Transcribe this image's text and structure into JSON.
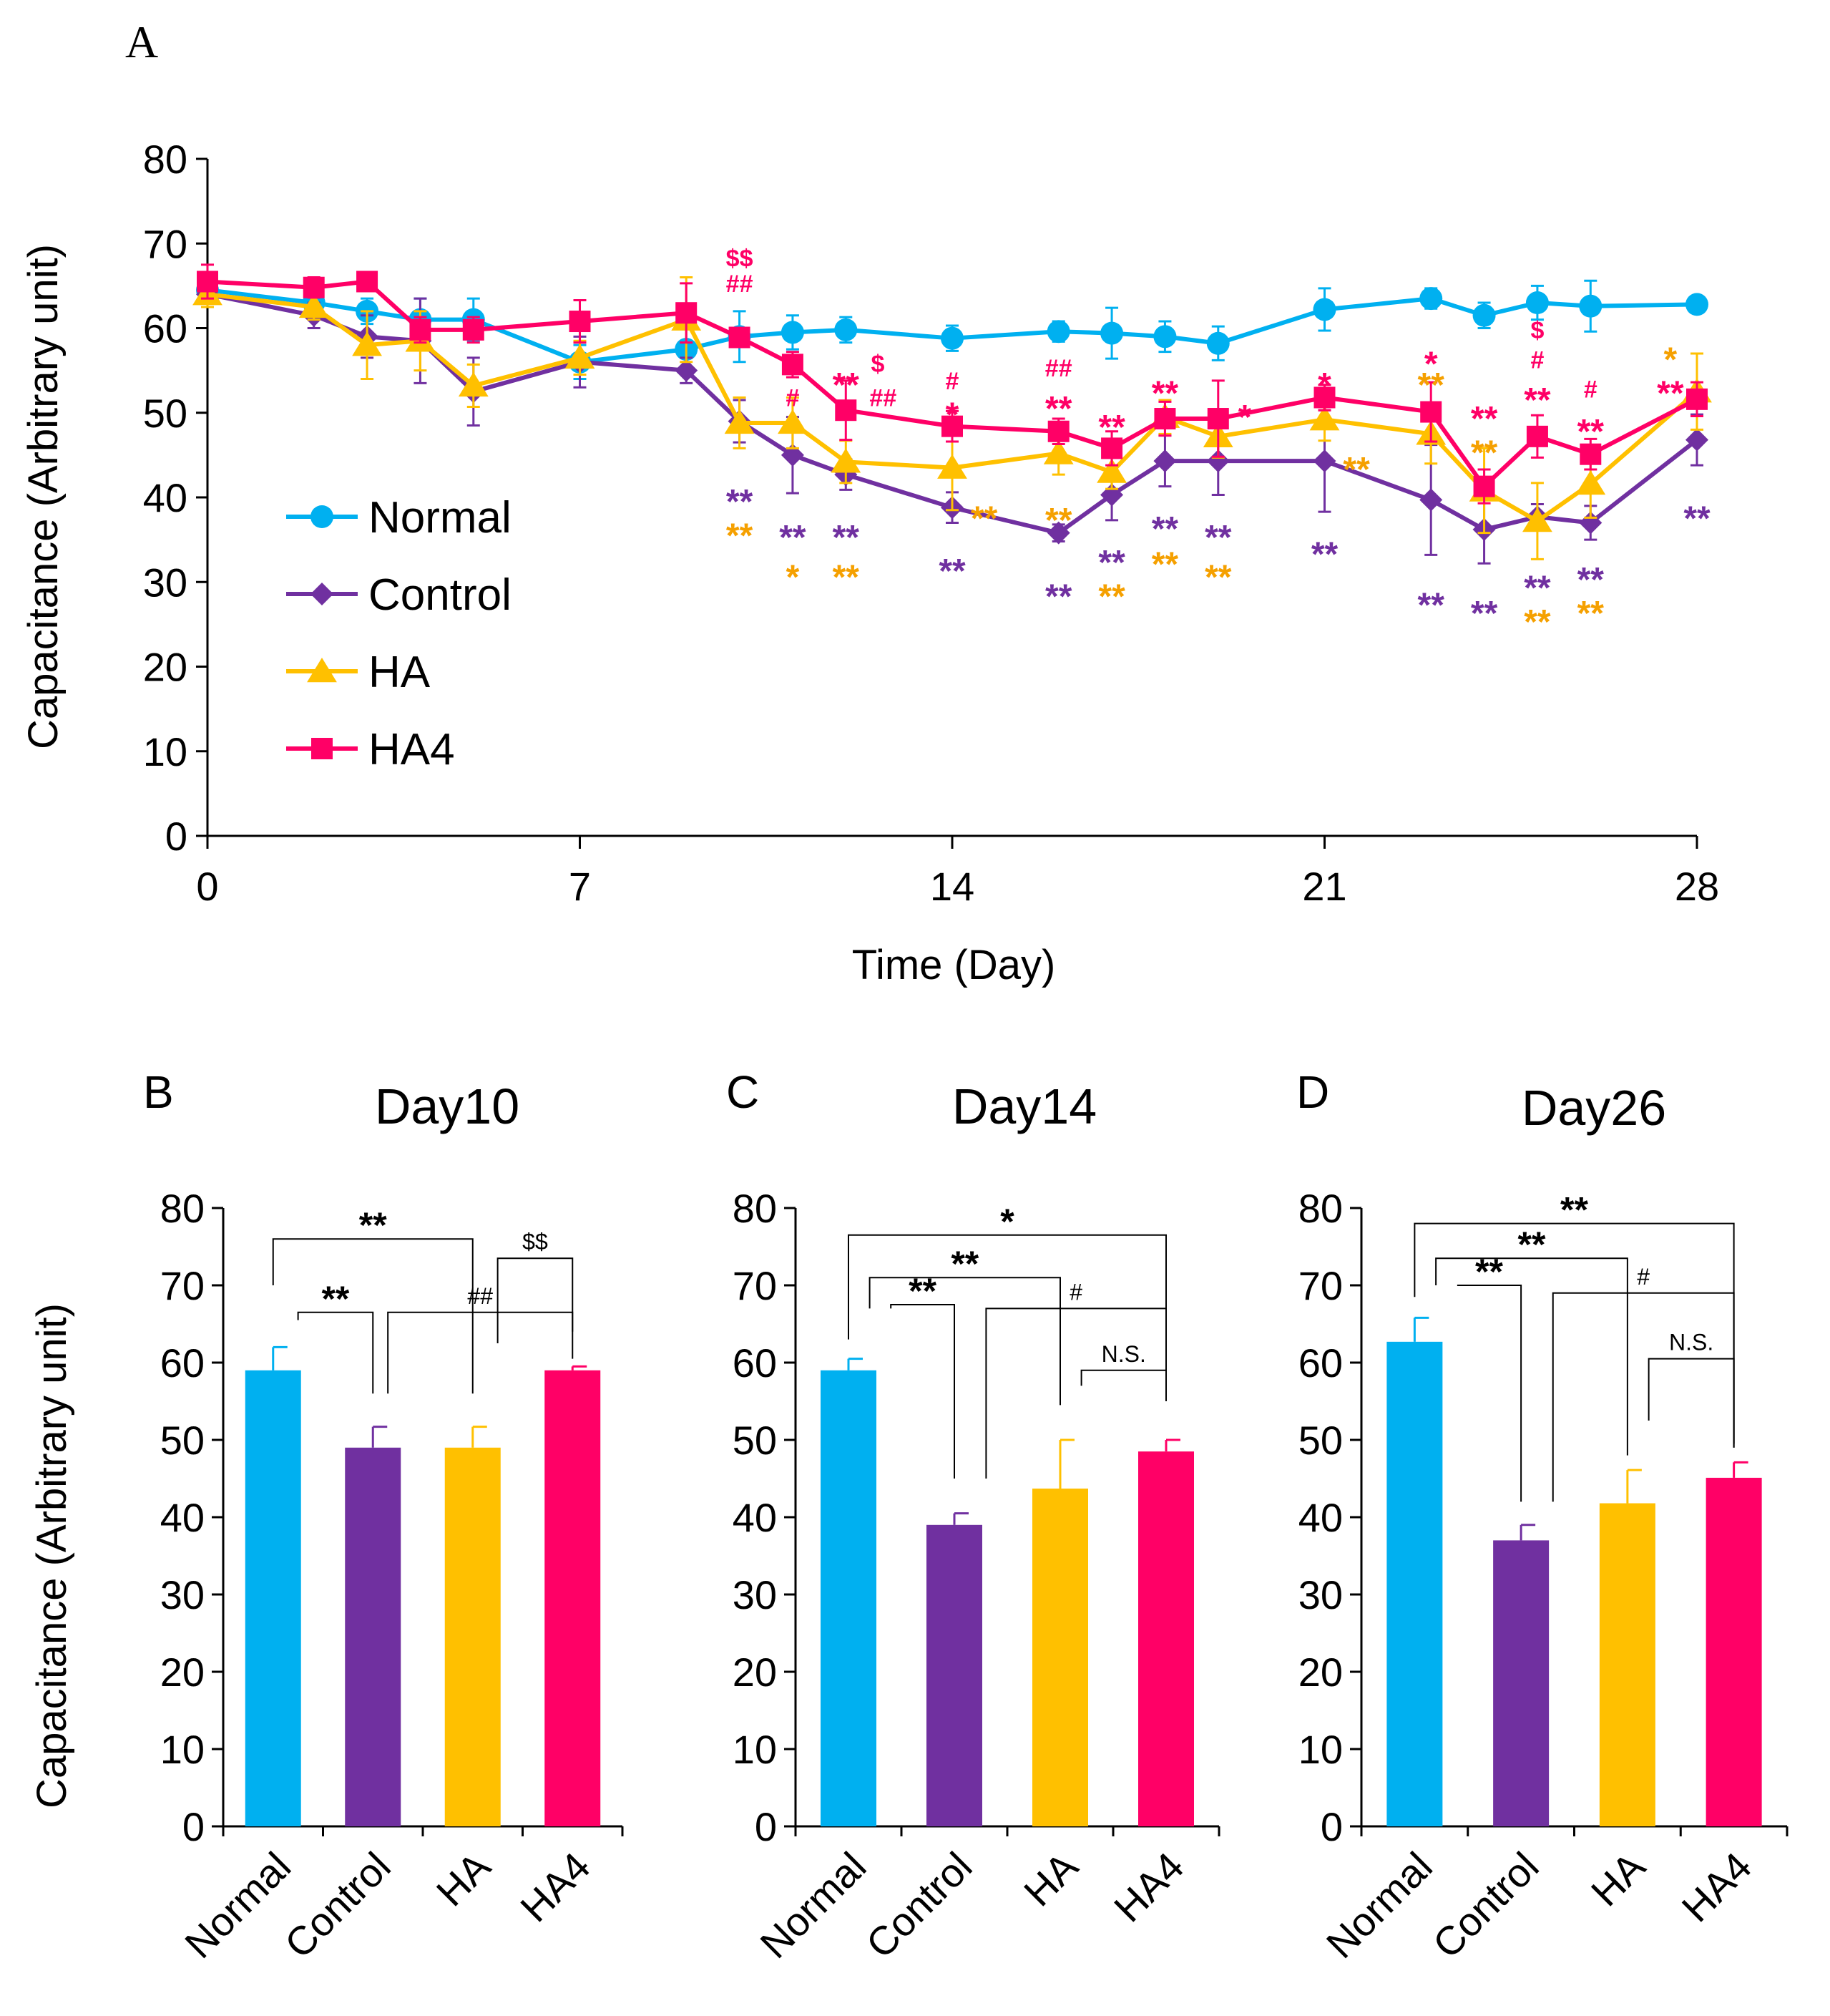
{
  "figure": {
    "colors": {
      "Normal": "#00B0F0",
      "Control": "#7030A0",
      "HA": "#FFC000",
      "HA4": "#FF0066",
      "ann_Control": "#7030A0",
      "ann_HA": "#F5A000",
      "ann_HA4": "#FF0066"
    }
  },
  "chart_data": [
    {
      "id": "A",
      "panel_label": "A",
      "type": "line",
      "title": "",
      "xlabel": "Time (Day)",
      "ylabel": "Capacitance (Arbitrary unit)",
      "xlim": [
        0,
        28
      ],
      "ylim": [
        0,
        80
      ],
      "xticks": [
        0,
        7,
        14,
        21,
        28
      ],
      "yticks": [
        0,
        10,
        20,
        30,
        40,
        50,
        60,
        70,
        80
      ],
      "legend_position": "left-middle",
      "series": [
        {
          "name": "Normal",
          "marker": "circle",
          "x": [
            0,
            2,
            3,
            4,
            5,
            7,
            9,
            10,
            11,
            12,
            14,
            16,
            17,
            18,
            19,
            21,
            23,
            24,
            25,
            26,
            28
          ],
          "y": [
            64.5,
            63,
            62,
            61,
            61,
            56,
            57.5,
            59,
            59.5,
            59.8,
            58.8,
            59.6,
            59.4,
            59,
            58.2,
            62.2,
            63.5,
            61.5,
            63,
            62.6,
            62.8
          ],
          "err": [
            1.5,
            1.2,
            1.5,
            2.5,
            2.5,
            2,
            2.5,
            3,
            2,
            1.5,
            1.5,
            1.2,
            3,
            1.8,
            2,
            2.5,
            1.2,
            1.5,
            2,
            3,
            1
          ]
        },
        {
          "name": "Control",
          "marker": "diamond",
          "x": [
            0,
            2,
            3,
            4,
            5,
            7,
            9,
            10,
            11,
            12,
            14,
            16,
            17,
            18,
            19,
            21,
            23,
            24,
            25,
            26,
            28
          ],
          "y": [
            64,
            61.5,
            59,
            58.5,
            52.5,
            56,
            55,
            49,
            45,
            42.7,
            38.8,
            35.8,
            40.3,
            44.3,
            44.3,
            44.3,
            39.7,
            36.2,
            37.7,
            37,
            46.8
          ],
          "err": [
            1.5,
            1.5,
            2.5,
            5,
            4,
            3,
            1.5,
            2.5,
            4.5,
            1.8,
            1.8,
            1,
            3,
            3,
            4,
            6,
            6.5,
            4,
            1.5,
            2,
            3
          ]
        },
        {
          "name": "HA",
          "marker": "triangle",
          "x": [
            0,
            2,
            3,
            4,
            5,
            7,
            9,
            10,
            11,
            12,
            14,
            16,
            17,
            18,
            19,
            21,
            23,
            24,
            25,
            26,
            28
          ],
          "y": [
            64,
            62.5,
            58,
            58.5,
            53.2,
            56.5,
            61,
            48.8,
            48.8,
            44.2,
            43.5,
            45.2,
            43,
            49.5,
            47.2,
            49.2,
            47.5,
            40.8,
            37.2,
            41.6,
            52.5
          ],
          "err": [
            1.5,
            1.5,
            4,
            3.5,
            2.5,
            2,
            5,
            3,
            3,
            2.5,
            5,
            2.5,
            2,
            2,
            2.5,
            2.5,
            3.5,
            5,
            4.5,
            4,
            4.5
          ]
        },
        {
          "name": "HA4",
          "marker": "square",
          "x": [
            0,
            2,
            3,
            4,
            5,
            7,
            9,
            10,
            11,
            12,
            14,
            16,
            17,
            18,
            19,
            21,
            23,
            24,
            25,
            26,
            28
          ],
          "y": [
            65.5,
            64.8,
            65.5,
            59.8,
            59.8,
            60.8,
            61.8,
            58.9,
            55.7,
            50.3,
            48.4,
            47.8,
            45.8,
            49.3,
            49.3,
            51.8,
            50.1,
            41.3,
            47.2,
            45.1,
            51.6
          ],
          "err": [
            2,
            1.2,
            1,
            1.5,
            1.5,
            2.5,
            3.5,
            1,
            1.5,
            3.5,
            1.8,
            1.5,
            2,
            2,
            4.5,
            1.5,
            3.5,
            2,
            2.5,
            1.8,
            2
          ]
        }
      ],
      "annotations": [
        {
          "x": 10,
          "y": 68.3,
          "text": "$$",
          "series": "HA4",
          "size": "small"
        },
        {
          "x": 10,
          "y": 65.3,
          "text": "##",
          "series": "HA4",
          "size": "small"
        },
        {
          "x": 10,
          "y": 40.5,
          "text": "**",
          "series": "Control",
          "size": "large"
        },
        {
          "x": 10,
          "y": 36.5,
          "text": "**",
          "series": "HA",
          "size": "large"
        },
        {
          "x": 11,
          "y": 51.8,
          "text": "#",
          "series": "HA4",
          "size": "small"
        },
        {
          "x": 11,
          "y": 36.3,
          "text": "**",
          "series": "Control",
          "size": "large"
        },
        {
          "x": 11,
          "y": 31.6,
          "text": "*",
          "series": "HA",
          "size": "large"
        },
        {
          "x": 12,
          "y": 54.3,
          "text": "**",
          "series": "HA4",
          "size": "large"
        },
        {
          "x": 12.6,
          "y": 55.8,
          "text": "$",
          "series": "HA4",
          "size": "small"
        },
        {
          "x": 12.7,
          "y": 51.8,
          "text": "##",
          "series": "HA4",
          "size": "small"
        },
        {
          "x": 12,
          "y": 36.3,
          "text": "**",
          "series": "Control",
          "size": "large"
        },
        {
          "x": 12,
          "y": 31.6,
          "text": "**",
          "series": "HA",
          "size": "large"
        },
        {
          "x": 14,
          "y": 53.8,
          "text": "#",
          "series": "HA4",
          "size": "small"
        },
        {
          "x": 14,
          "y": 50.8,
          "text": "*",
          "series": "HA4",
          "size": "large"
        },
        {
          "x": 14.6,
          "y": 38.5,
          "text": "**",
          "series": "HA",
          "size": "large"
        },
        {
          "x": 14,
          "y": 32.3,
          "text": "**",
          "series": "Control",
          "size": "large"
        },
        {
          "x": 16,
          "y": 55.3,
          "text": "##",
          "series": "HA4",
          "size": "small"
        },
        {
          "x": 16,
          "y": 51.5,
          "text": "**",
          "series": "HA4",
          "size": "large"
        },
        {
          "x": 16,
          "y": 38.3,
          "text": "**",
          "series": "HA",
          "size": "large"
        },
        {
          "x": 16,
          "y": 29.3,
          "text": "**",
          "series": "Control",
          "size": "large"
        },
        {
          "x": 17,
          "y": 49.3,
          "text": "**",
          "series": "HA4",
          "size": "large"
        },
        {
          "x": 17,
          "y": 33.3,
          "text": "**",
          "series": "Control",
          "size": "large"
        },
        {
          "x": 17,
          "y": 29.3,
          "text": "**",
          "series": "HA",
          "size": "large"
        },
        {
          "x": 18,
          "y": 53.3,
          "text": "**",
          "series": "HA4",
          "size": "large"
        },
        {
          "x": 18,
          "y": 37.3,
          "text": "**",
          "series": "Control",
          "size": "large"
        },
        {
          "x": 18,
          "y": 33.1,
          "text": "**",
          "series": "HA",
          "size": "large"
        },
        {
          "x": 19.5,
          "y": 50.5,
          "text": "*",
          "series": "HA4",
          "size": "large"
        },
        {
          "x": 19,
          "y": 36.3,
          "text": "**",
          "series": "Control",
          "size": "large"
        },
        {
          "x": 19,
          "y": 31.6,
          "text": "**",
          "series": "HA",
          "size": "large"
        },
        {
          "x": 21,
          "y": 54.3,
          "text": "*",
          "series": "HA4",
          "size": "large"
        },
        {
          "x": 21.6,
          "y": 44.3,
          "text": "**",
          "series": "HA",
          "size": "large"
        },
        {
          "x": 21,
          "y": 34.3,
          "text": "**",
          "series": "Control",
          "size": "large"
        },
        {
          "x": 23,
          "y": 56.8,
          "text": "*",
          "series": "HA4",
          "size": "large"
        },
        {
          "x": 23,
          "y": 54.3,
          "text": "**",
          "series": "HA",
          "size": "large"
        },
        {
          "x": 23,
          "y": 28.3,
          "text": "**",
          "series": "Control",
          "size": "large"
        },
        {
          "x": 24,
          "y": 50.3,
          "text": "**",
          "series": "HA4",
          "size": "large"
        },
        {
          "x": 24,
          "y": 46.3,
          "text": "**",
          "series": "HA",
          "size": "large"
        },
        {
          "x": 24,
          "y": 27.3,
          "text": "**",
          "series": "Control",
          "size": "large"
        },
        {
          "x": 25,
          "y": 59.8,
          "text": "$",
          "series": "HA4",
          "size": "small"
        },
        {
          "x": 25,
          "y": 56.3,
          "text": "#",
          "series": "HA4",
          "size": "small"
        },
        {
          "x": 25,
          "y": 52.5,
          "text": "**",
          "series": "HA4",
          "size": "large"
        },
        {
          "x": 25,
          "y": 30.3,
          "text": "**",
          "series": "Control",
          "size": "large"
        },
        {
          "x": 25,
          "y": 26.3,
          "text": "**",
          "series": "HA",
          "size": "large"
        },
        {
          "x": 26,
          "y": 52.8,
          "text": "#",
          "series": "HA4",
          "size": "small"
        },
        {
          "x": 26,
          "y": 48.8,
          "text": "**",
          "series": "HA4",
          "size": "large"
        },
        {
          "x": 26,
          "y": 31.3,
          "text": "**",
          "series": "Control",
          "size": "large"
        },
        {
          "x": 26,
          "y": 27.3,
          "text": "**",
          "series": "HA",
          "size": "large"
        },
        {
          "x": 27.5,
          "y": 57.3,
          "text": "*",
          "series": "HA",
          "size": "large"
        },
        {
          "x": 27.5,
          "y": 53.3,
          "text": "**",
          "series": "HA4",
          "size": "large"
        },
        {
          "x": 28,
          "y": 38.5,
          "text": "**",
          "series": "Control",
          "size": "large"
        }
      ]
    },
    {
      "id": "B",
      "panel_label": "B",
      "type": "bar",
      "title": "Day10",
      "ylabel": "Capacitance (Arbitrary unit)",
      "ylim": [
        0,
        80
      ],
      "yticks": [
        0,
        10,
        20,
        30,
        40,
        50,
        60,
        70,
        80
      ],
      "categories": [
        "Normal",
        "Control",
        "HA",
        "HA4"
      ],
      "values": [
        59,
        49,
        49,
        59
      ],
      "errors": [
        3,
        2.7,
        2.7,
        0.5
      ],
      "brackets": [
        {
          "from": 0,
          "to": 2,
          "top": 76,
          "drop_from": 70,
          "drop_to": 56,
          "label": "**",
          "label_size": "large"
        },
        {
          "from": 0.25,
          "to": 1,
          "top": 66.5,
          "drop_from": 65.5,
          "drop_to": 56,
          "label": "**",
          "label_size": "large"
        },
        {
          "from": 2.25,
          "to": 3,
          "top": 73.5,
          "drop_from": 62.5,
          "drop_to": 60.5,
          "label": "$$",
          "label_size": "small"
        },
        {
          "from": 1.15,
          "to": 3,
          "top": 66.5,
          "drop_from": 56,
          "drop_to": 64,
          "label": "##",
          "label_size": "small"
        }
      ]
    },
    {
      "id": "C",
      "panel_label": "C",
      "type": "bar",
      "title": "Day14",
      "ylim": [
        0,
        80
      ],
      "yticks": [
        0,
        10,
        20,
        30,
        40,
        50,
        60,
        70,
        80
      ],
      "categories": [
        "Normal",
        "Control",
        "HA",
        "HA4"
      ],
      "values": [
        59,
        39,
        43.7,
        48.5
      ],
      "errors": [
        1.5,
        1.5,
        6.3,
        1.5
      ],
      "brackets": [
        {
          "from": 0,
          "to": 3,
          "top": 76.5,
          "drop_from": 63,
          "drop_to": 55,
          "label": "*",
          "label_size": "large"
        },
        {
          "from": 0.2,
          "to": 2,
          "top": 71,
          "drop_from": 67,
          "drop_to": 54.5,
          "label": "**",
          "label_size": "large"
        },
        {
          "from": 0.4,
          "to": 1,
          "top": 67.5,
          "drop_from": 67,
          "drop_to": 45,
          "label": "**",
          "label_size": "large"
        },
        {
          "from": 1.3,
          "to": 3,
          "top": 67,
          "drop_from": 45,
          "drop_to": 56,
          "label": "#",
          "label_size": "small"
        },
        {
          "from": 2.2,
          "to": 3,
          "top": 59,
          "drop_from": 57,
          "drop_to": 55.5,
          "label": "N.S.",
          "label_size": "small"
        }
      ]
    },
    {
      "id": "D",
      "panel_label": "D",
      "type": "bar",
      "title": "Day26",
      "ylim": [
        0,
        80
      ],
      "yticks": [
        0,
        10,
        20,
        30,
        40,
        50,
        60,
        70,
        80
      ],
      "categories": [
        "Normal",
        "Control",
        "HA",
        "HA4"
      ],
      "values": [
        62.7,
        37,
        41.8,
        45.1
      ],
      "errors": [
        3.1,
        2,
        4.3,
        2
      ],
      "brackets": [
        {
          "from": 0,
          "to": 3,
          "top": 78,
          "drop_from": 68.5,
          "drop_to": 49.5,
          "label": "**",
          "label_size": "large"
        },
        {
          "from": 0.2,
          "to": 2,
          "top": 73.5,
          "drop_from": 70,
          "drop_to": 48,
          "label": "**",
          "label_size": "large"
        },
        {
          "from": 0.4,
          "to": 1,
          "top": 70,
          "drop_from": 70,
          "drop_to": 42,
          "label": "**",
          "label_size": "large"
        },
        {
          "from": 1.3,
          "to": 3,
          "top": 69,
          "drop_from": 42,
          "drop_to": 49,
          "label": "#",
          "label_size": "small"
        },
        {
          "from": 2.2,
          "to": 3,
          "top": 60.5,
          "drop_from": 52.5,
          "drop_to": 49,
          "label": "N.S.",
          "label_size": "small"
        }
      ]
    }
  ]
}
